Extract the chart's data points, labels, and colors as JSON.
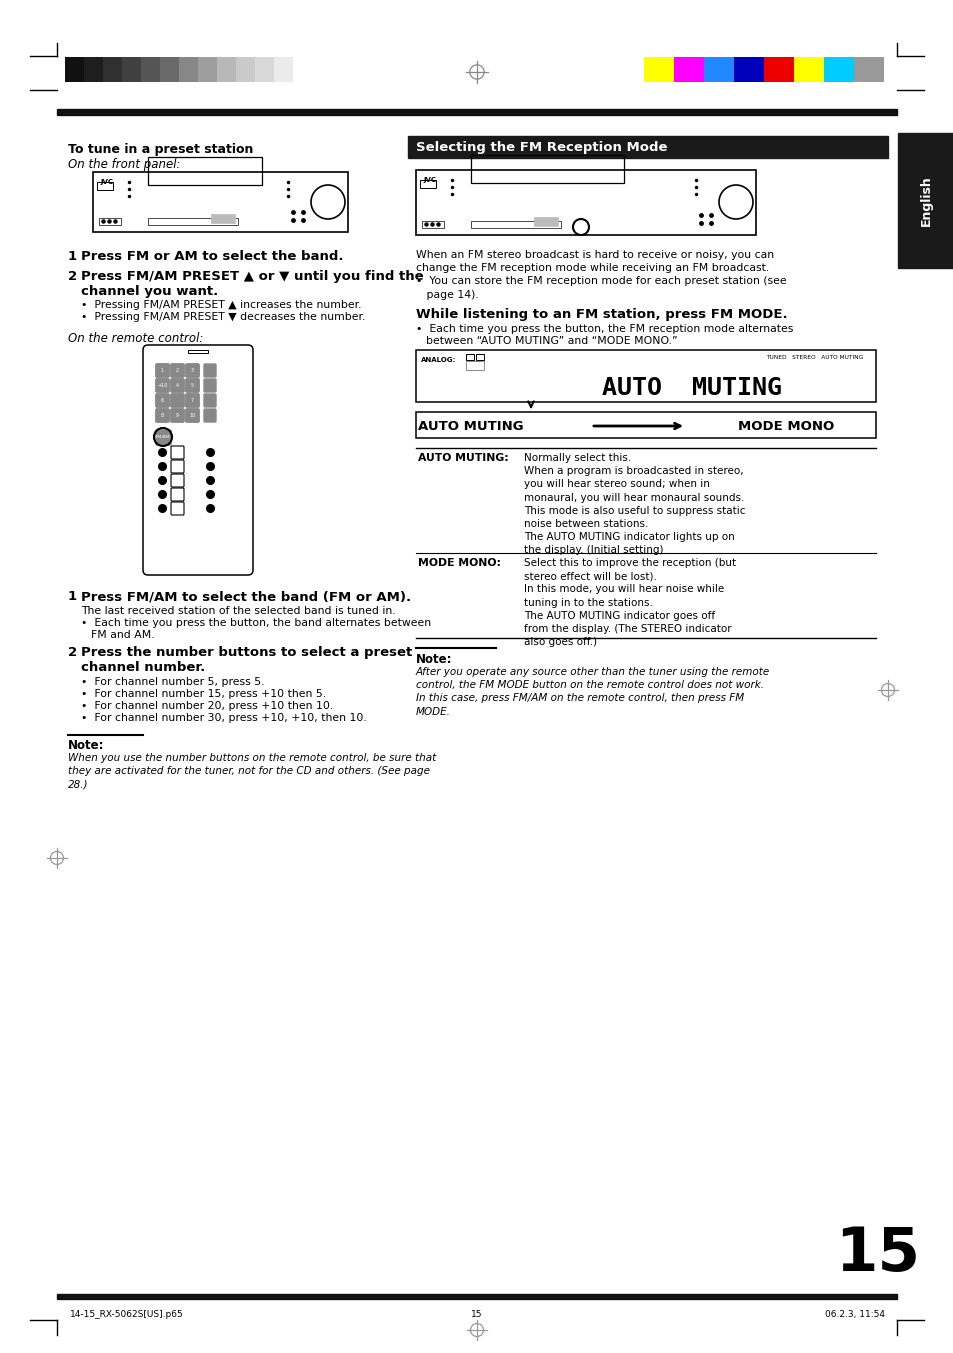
{
  "page_bg": "#ffffff",
  "page_number": "15",
  "bw_strip": [
    "#111111",
    "#1e1e1e",
    "#303030",
    "#404040",
    "#555555",
    "#6a6a6a",
    "#878787",
    "#9e9e9e",
    "#b8b8b8",
    "#cacaca",
    "#d9d9d9",
    "#ebebeb"
  ],
  "color_strip": [
    "#ffff00",
    "#ff00ff",
    "#2288ff",
    "#0000bb",
    "#ee0000",
    "#ffff00",
    "#00ccff",
    "#999999"
  ],
  "english_tab_bg": "#1a1a1a",
  "section_title_bg": "#1a1a1a",
  "section_title_text": "Selecting the FM Reception Mode",
  "left_title": "To tune in a preset station",
  "left_subtitle": "On the front panel:",
  "remote_label": "On the remote control:",
  "step1_left": "Press FM or AM to select the band.",
  "step2_left_line1": "Press FM/AM PRESET ▲ or ▼ until you find the",
  "step2_left_line2": "channel you want.",
  "bullet1": "•  Pressing FM/AM PRESET ▲ increases the number.",
  "bullet2": "•  Pressing FM/AM PRESET ▼ decreases the number.",
  "step1_remote": "Press FM/AM to select the band (FM or AM).",
  "step1_remote_sub1": "The last received station of the selected band is tuned in.",
  "step1_remote_sub2": "•  Each time you press the button, the band alternates between",
  "step1_remote_sub3": "FM and AM.",
  "step2_remote_line1": "Press the number buttons to select a preset",
  "step2_remote_line2": "channel number.",
  "remote_bullets": [
    "•  For channel number 5, press 5.",
    "•  For channel number 15, press +10 then 5.",
    "•  For channel number 20, press +10 then 10.",
    "•  For channel number 30, press +10, +10, then 10."
  ],
  "note1_line": "Note:",
  "note1_text": "When you use the number buttons on the remote control, be sure that\nthey are activated for the tuner, not for the CD and others. (See page\n28.)",
  "intro_right": "When an FM stereo broadcast is hard to receive or noisy, you can\nchange the FM reception mode while receiving an FM broadcast.\n•  You can store the FM reception mode for each preset station (see\n   page 14).",
  "right_heading": "While listening to an FM station, press FM MODE.",
  "right_bullet": "•  Each time you press the button, the FM reception mode alternates\n   between “AUTO MUTING” and “MODE MONO.”",
  "auto_muting_label": "AUTO MUTING",
  "mode_mono_label": "MODE MONO",
  "auto_muting_heading": "AUTO MUTING:",
  "auto_muting_body": "Normally select this.\nWhen a program is broadcasted in stereo,\nyou will hear stereo sound; when in\nmonaural, you will hear monaural sounds.\nThis mode is also useful to suppress static\nnoise between stations.\nThe AUTO MUTING indicator lights up on\nthe display. (Initial setting)",
  "mode_mono_heading": "MODE MONO:",
  "mode_mono_body": "Select this to improve the reception (but\nstereo effect will be lost).\nIn this mode, you will hear noise while\ntuning in to the stations.\nThe AUTO MUTING indicator goes off\nfrom the display. (The STEREO indicator\nalso goes off.)",
  "note2_label": "Note:",
  "note2_text": "After you operate any source other than the tuner using the remote\ncontrol, the FM MODE button on the remote control does not work.\nIn this case, press FM/AM on the remote control, then press FM\nMODE.",
  "footer_left": "14-15_RX-5062S[US].p65",
  "footer_page": "15",
  "footer_right": "06.2.3, 11:54",
  "page_num_large": "15"
}
